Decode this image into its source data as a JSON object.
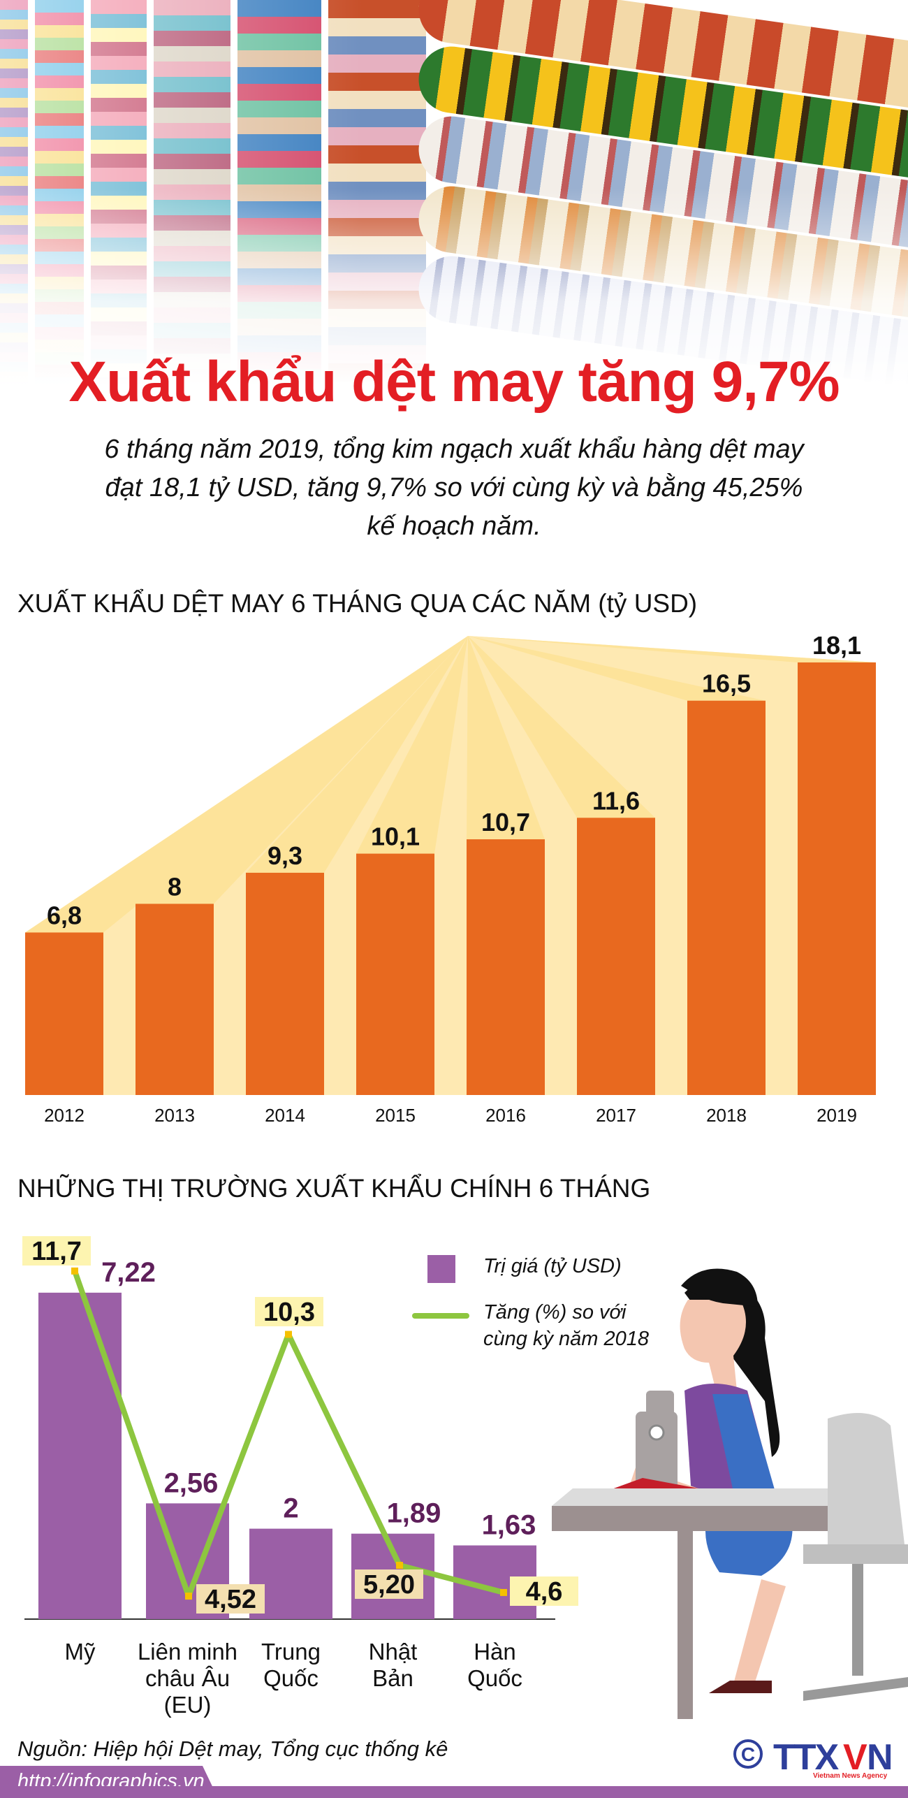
{
  "header": {
    "title": "Xuất khẩu dệt may tăng 9,7%",
    "subtitle_lines": [
      "6 tháng năm 2019, tổng kim ngạch xuất khẩu hàng dệt may",
      "đạt 18,1 tỷ USD, tăng 9,7% so với cùng kỳ và bằng 45,25%",
      "kế hoạch năm."
    ]
  },
  "colors": {
    "title": "#e31e24",
    "bar_orange": "#e8691f",
    "fan_yellow": "#fde39a",
    "bar_purple": "#9b5fa6",
    "line_green": "#8dc63f",
    "value_purple": "#5e1f5a",
    "label_yellow": "#fdf4b0",
    "label_beige": "#f3dfb0"
  },
  "chart_data": [
    {
      "type": "bar",
      "title": "XUẤT KHẨU DỆT MAY 6 THÁNG QUA CÁC NĂM (tỷ USD)",
      "categories": [
        "2012",
        "2013",
        "2014",
        "2015",
        "2016",
        "2017",
        "2018",
        "2019"
      ],
      "values": [
        6.8,
        8,
        9.3,
        10.1,
        10.7,
        11.6,
        16.5,
        18.1
      ],
      "value_labels": [
        "6,8",
        "8",
        "9,3",
        "10,1",
        "10,7",
        "11,6",
        "16,5",
        "18,1"
      ],
      "ylim": [
        0,
        18.1
      ],
      "grid": false
    },
    {
      "type": "bar+line",
      "title": "NHỮNG THỊ TRƯỜNG XUẤT KHẨU CHÍNH 6 THÁNG",
      "categories": [
        "Mỹ",
        "Liên minh châu Âu (EU)",
        "Trung Quốc",
        "Nhật Bản",
        "Hàn Quốc"
      ],
      "category_lines": [
        [
          "Mỹ"
        ],
        [
          "Liên minh",
          "châu Âu",
          "(EU)"
        ],
        [
          "Trung",
          "Quốc"
        ],
        [
          "Nhật",
          "Bản"
        ],
        [
          "Hàn",
          "Quốc"
        ]
      ],
      "series": [
        {
          "name": "Trị giá (tỷ USD)",
          "type": "bar",
          "values": [
            7.22,
            2.56,
            2,
            1.89,
            1.63
          ],
          "labels": [
            "7,22",
            "2,56",
            "2",
            "1,89",
            "1,63"
          ]
        },
        {
          "name": "Tăng (%) so với cùng kỳ năm 2018",
          "type": "line",
          "values": [
            11.7,
            4.52,
            10.3,
            5.2,
            4.6
          ],
          "labels": [
            "11,7",
            "4,52",
            "10,3",
            "5,20",
            "4,6"
          ]
        }
      ],
      "legend": {
        "position": "top-right",
        "bar_label": "Trị giá (tỷ USD)",
        "line_label_lines": [
          "Tăng (%) so với",
          "cùng kỳ năm 2018"
        ]
      },
      "grid": false
    }
  ],
  "footer": {
    "source": "Nguồn: Hiệp hội Dệt may, Tổng cục thống kê",
    "url": "http://infographics.vn",
    "logo": "TTXVN",
    "logo_sub": "Vietnam News Agency"
  }
}
